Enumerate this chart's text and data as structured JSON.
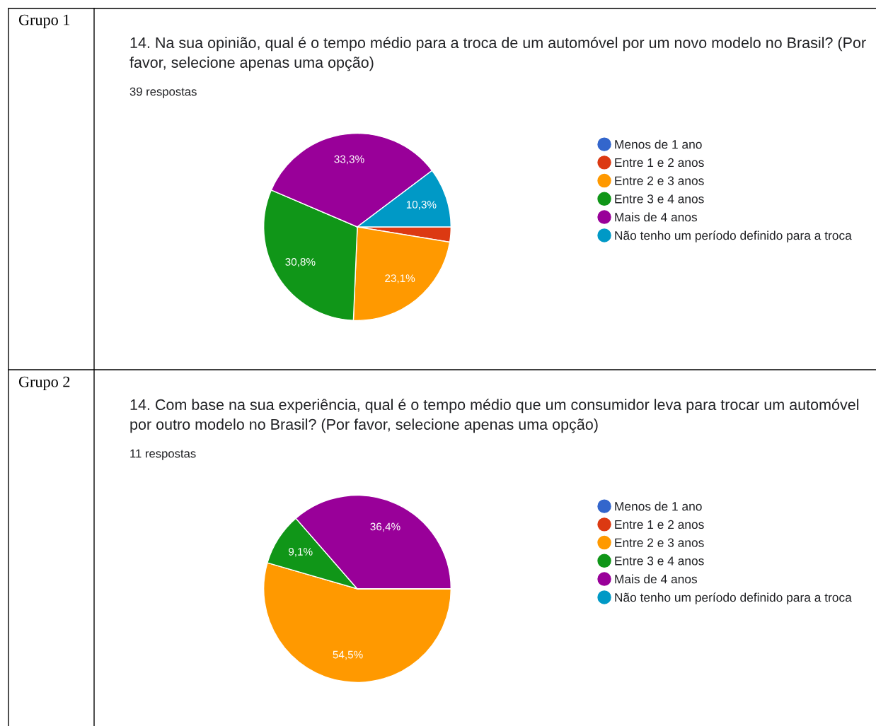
{
  "chart_data": [
    {
      "type": "pie",
      "annotations": [
        "Grupo 1"
      ],
      "title": "14. Na sua opinião, qual é o tempo médio para a troca de um automóvel por um novo modelo no Brasil? (Por favor, selecione apenas uma opção)",
      "subtitle": "39 respostas",
      "categories": [
        "Menos de 1 ano",
        "Entre 1 e 2 anos",
        "Entre 2 e 3 anos",
        "Entre 3 e 4 anos",
        "Mais de 4 anos",
        "Não tenho um período definido para a troca"
      ],
      "values": [
        0,
        2.6,
        23.1,
        30.8,
        33.3,
        10.3
      ],
      "value_labels": [
        null,
        null,
        "23,1%",
        "30,8%",
        "33,3%",
        "10,3%"
      ],
      "colors": [
        "#3366cc",
        "#dc3912",
        "#ff9900",
        "#109618",
        "#990099",
        "#0099c6"
      ],
      "legend": "right"
    },
    {
      "type": "pie",
      "annotations": [
        "Grupo 2"
      ],
      "title": "14. Com base na sua experiência, qual é o tempo médio que um consumidor leva para trocar um automóvel por outro modelo no Brasil? (Por favor, selecione apenas uma opção)",
      "subtitle": "11 respostas",
      "categories": [
        "Menos de 1 ano",
        "Entre 1 e 2 anos",
        "Entre 2 e 3 anos",
        "Entre 3 e 4 anos",
        "Mais de 4 anos",
        "Não tenho um período definido para a troca"
      ],
      "values": [
        0,
        0,
        54.5,
        9.1,
        36.4,
        0
      ],
      "value_labels": [
        null,
        null,
        "54,5%",
        "9,1%",
        "36,4%",
        null
      ],
      "colors": [
        "#3366cc",
        "#dc3912",
        "#ff9900",
        "#109618",
        "#990099",
        "#0099c6"
      ],
      "legend": "right"
    }
  ]
}
